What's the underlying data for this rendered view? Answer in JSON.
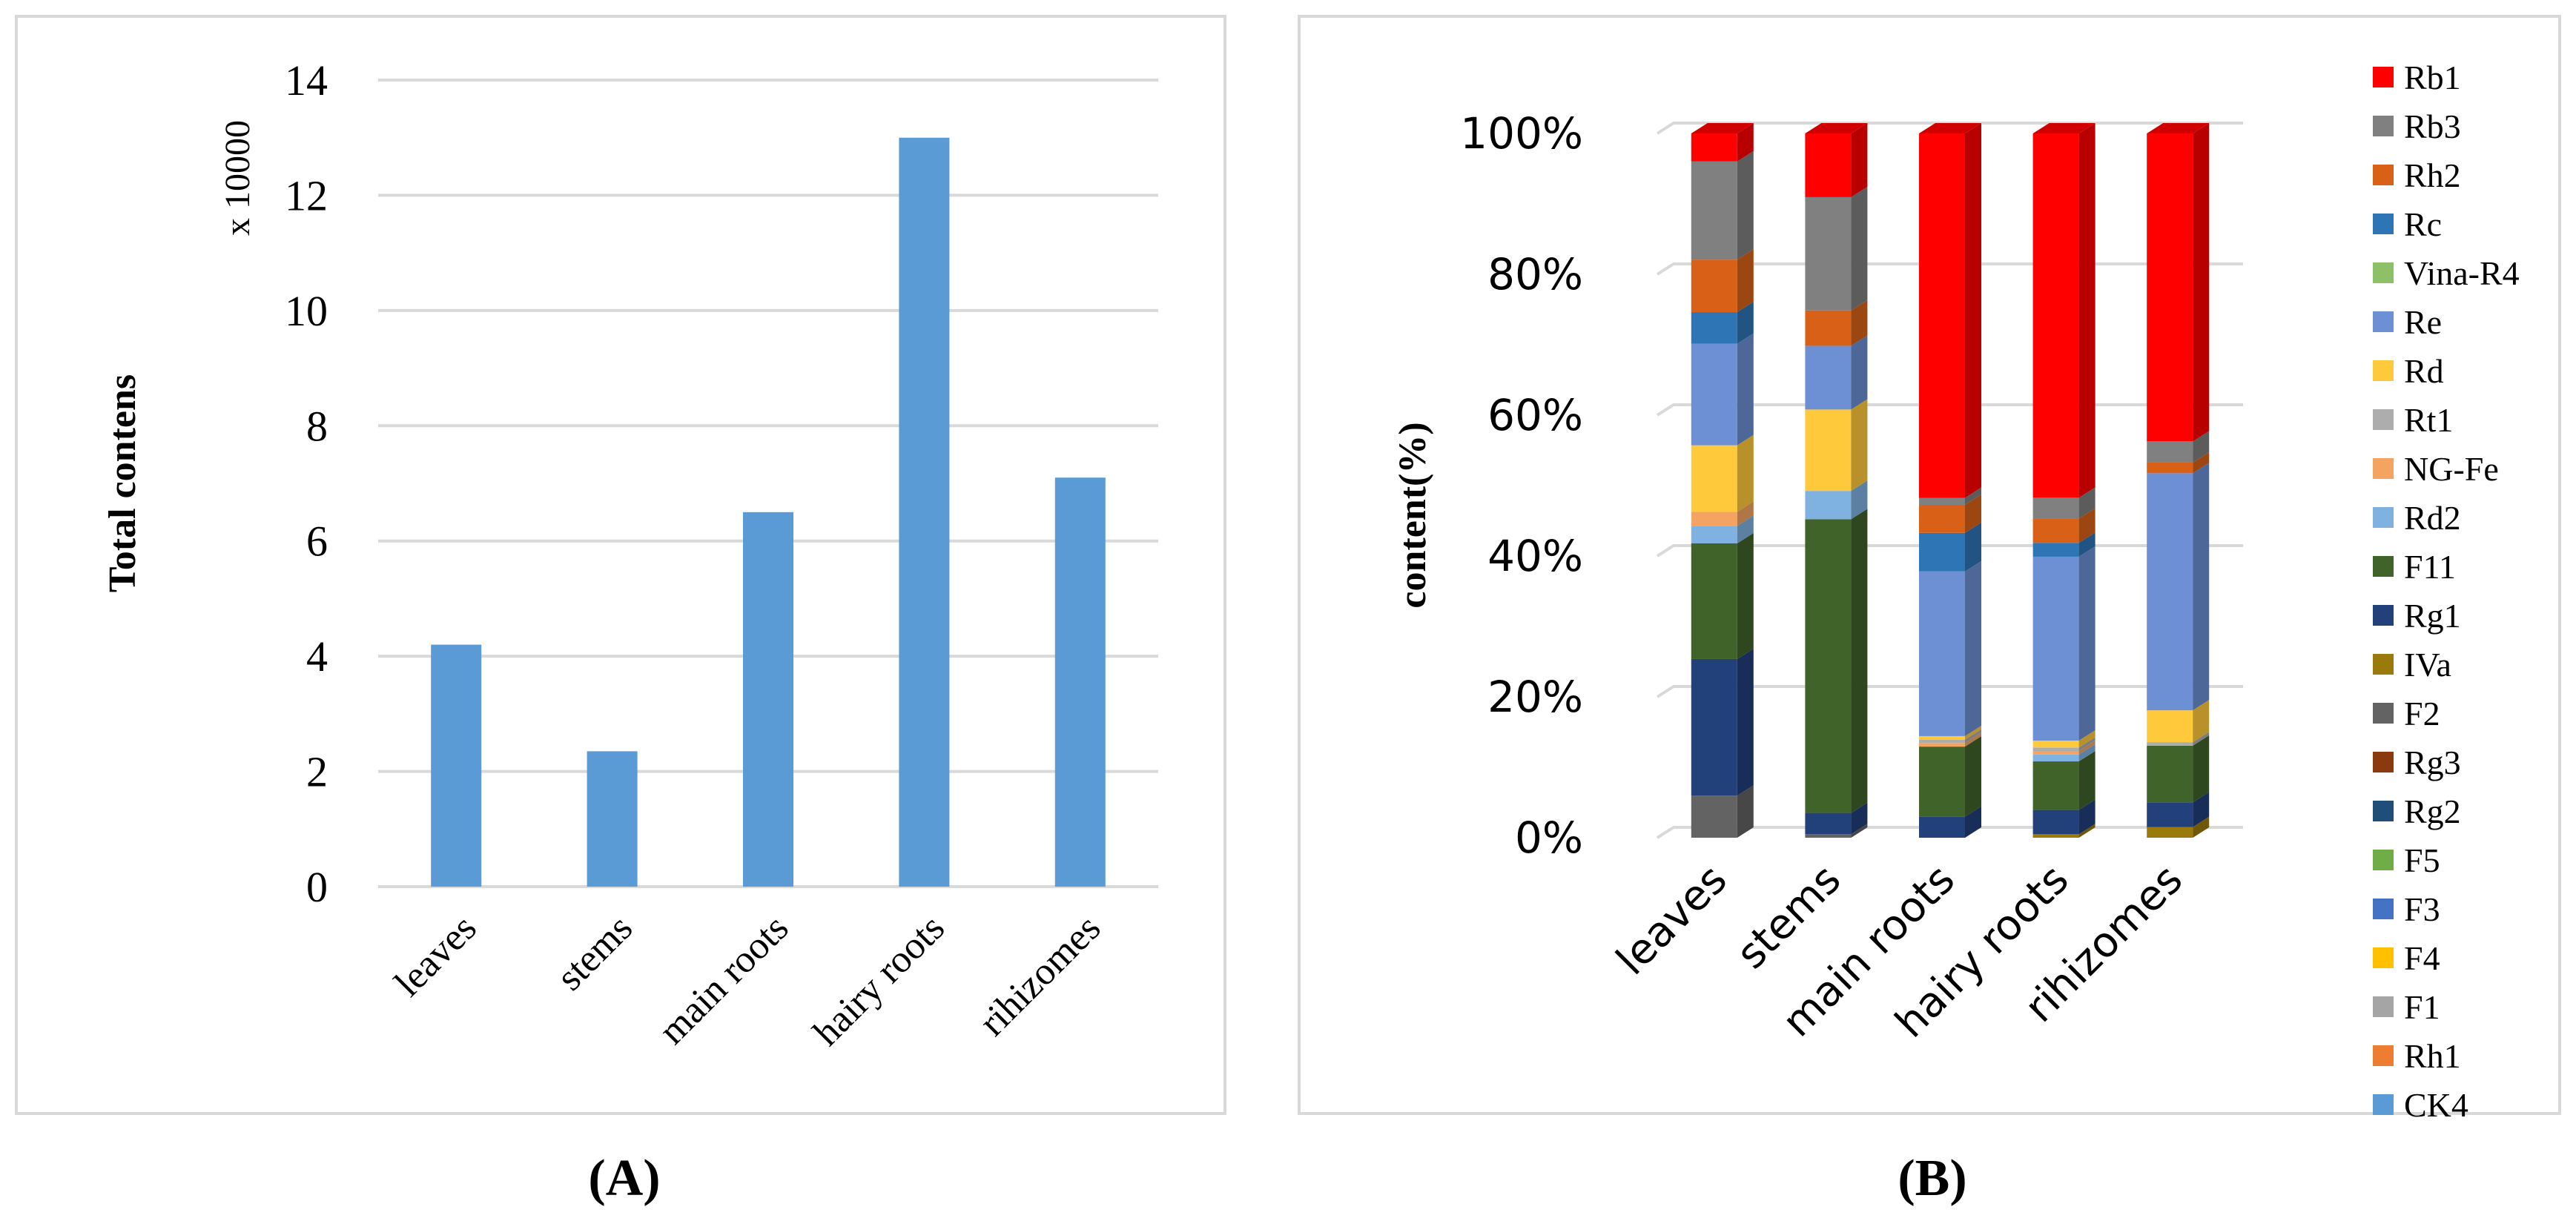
{
  "chart_data": [
    {
      "panel_label": "(A)",
      "type": "bar",
      "categories": [
        "leaves",
        "stems",
        "main roots",
        "hairy roots",
        "rihizomes"
      ],
      "values": [
        4.2,
        2.35,
        6.5,
        13.0,
        7.1
      ],
      "ylabel": "Total contens",
      "scale_note": "x 10000",
      "ylim": [
        0,
        14
      ],
      "yticks": [
        "0",
        "2",
        "4",
        "6",
        "8",
        "10",
        "12",
        "14"
      ],
      "grid": true,
      "bar_color": "#5B9BD5"
    },
    {
      "panel_label": "(B)",
      "type": "bar",
      "stacked": "percent",
      "style": "3d",
      "categories": [
        "leaves",
        "stems",
        "main roots",
        "hairy roots",
        "rihizomes"
      ],
      "ylabel": "content(%)",
      "ylim": [
        0,
        100
      ],
      "yticks": [
        "0%",
        "20%",
        "40%",
        "60%",
        "80%",
        "100%"
      ],
      "grid": true,
      "legend_position": "right",
      "legend": [
        "Rb1",
        "Rb3",
        "Rh2",
        "Rc",
        "Vina-R4",
        "Re",
        "Rd",
        "Rt1",
        "NG-Fe",
        "Rd2",
        "F11",
        "Rg1",
        "IVa",
        "F2",
        "Rg3",
        "Rg2",
        "F5",
        "F3",
        "F4",
        "F1",
        "Rh1",
        "CK4"
      ],
      "series": [
        {
          "name": "Rb1",
          "color": "#FF0000",
          "values": [
            4,
            9,
            52,
            52.5,
            43.5
          ]
        },
        {
          "name": "Rb3",
          "color": "#808080",
          "values": [
            14,
            16,
            1,
            3,
            3
          ]
        },
        {
          "name": "Rh2",
          "color": "#D86117",
          "values": [
            7.5,
            5,
            4,
            3.5,
            1.5
          ]
        },
        {
          "name": "Rc",
          "color": "#2E75B6",
          "values": [
            4.5,
            0,
            5.5,
            2,
            0
          ]
        },
        {
          "name": "Vina-R4",
          "color": "#8CC168",
          "values": [
            0,
            0,
            0,
            0,
            0
          ]
        },
        {
          "name": "Re",
          "color": "#6D8FD4",
          "values": [
            14.5,
            9,
            23.5,
            26.5,
            33.5
          ]
        },
        {
          "name": "Rd",
          "color": "#FFC93C",
          "values": [
            9.5,
            11.5,
            0.5,
            1,
            4.5
          ]
        },
        {
          "name": "Rt1",
          "color": "#ADADAD",
          "values": [
            0,
            0,
            0.5,
            0.5,
            0.5
          ]
        },
        {
          "name": "NG-Fe",
          "color": "#F4A460",
          "values": [
            2,
            0,
            0.5,
            0.5,
            0
          ]
        },
        {
          "name": "Rd2",
          "color": "#7FB2E0",
          "values": [
            2.5,
            4,
            0,
            1,
            0
          ]
        },
        {
          "name": "F11",
          "color": "#40632A",
          "values": [
            16.5,
            41.5,
            10,
            7,
            8
          ]
        },
        {
          "name": "Rg1",
          "color": "#22407A",
          "values": [
            19.5,
            3,
            3,
            3.5,
            3.5
          ]
        },
        {
          "name": "IVa",
          "color": "#9A7A0A",
          "values": [
            0,
            0,
            0,
            0.5,
            1.5
          ]
        },
        {
          "name": "F2",
          "color": "#636363",
          "values": [
            6,
            0.5,
            0,
            0,
            0
          ]
        },
        {
          "name": "Rg3",
          "color": "#8B3A10",
          "values": [
            0,
            0,
            0,
            0,
            0
          ]
        },
        {
          "name": "Rg2",
          "color": "#1F4E79",
          "values": [
            0,
            0,
            0,
            0,
            0
          ]
        },
        {
          "name": "F5",
          "color": "#70AD47",
          "values": [
            0,
            0,
            0,
            0,
            0
          ]
        },
        {
          "name": "F3",
          "color": "#4472C4",
          "values": [
            0,
            0,
            0,
            0,
            0
          ]
        },
        {
          "name": "F4",
          "color": "#FFC000",
          "values": [
            0,
            0,
            0,
            0,
            0
          ]
        },
        {
          "name": "F1",
          "color": "#A5A5A5",
          "values": [
            0,
            0,
            0,
            0,
            0
          ]
        },
        {
          "name": "Rh1",
          "color": "#ED7D31",
          "values": [
            0,
            0,
            0,
            0,
            0
          ]
        },
        {
          "name": "CK4",
          "color": "#5B9BD5",
          "values": [
            0,
            0,
            0,
            0,
            0
          ]
        }
      ]
    }
  ]
}
